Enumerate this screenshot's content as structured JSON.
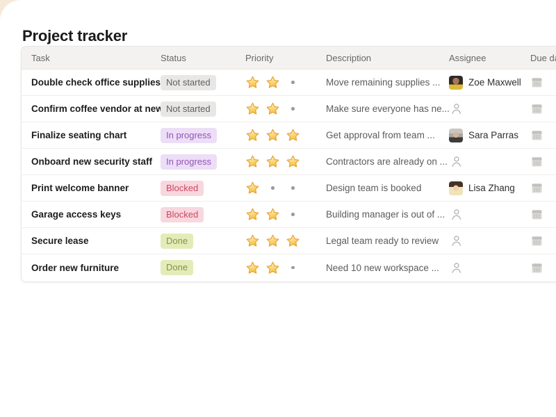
{
  "page": {
    "title": "Project tracker"
  },
  "table": {
    "columns": {
      "task": "Task",
      "status": "Status",
      "priority": "Priority",
      "description": "Description",
      "assignee": "Assignee",
      "due_date": "Due date"
    },
    "priority_max": 3,
    "rows": [
      {
        "task": "Double check office supplies",
        "status": {
          "label": "Not started",
          "key": "not-started"
        },
        "priority": 2,
        "description": "Move remaining supplies ...",
        "assignee": {
          "name": "Zoe Maxwell",
          "avatar": "zoe"
        }
      },
      {
        "task": "Confirm coffee vendor at new...",
        "status": {
          "label": "Not started",
          "key": "not-started"
        },
        "priority": 2,
        "description": "Make sure everyone has ne...",
        "assignee": null
      },
      {
        "task": "Finalize seating chart",
        "status": {
          "label": "In progress",
          "key": "in-progress"
        },
        "priority": 3,
        "description": "Get approval from team ...",
        "assignee": {
          "name": "Sara Parras",
          "avatar": "sara"
        }
      },
      {
        "task": "Onboard new security staff",
        "status": {
          "label": "In progress",
          "key": "in-progress"
        },
        "priority": 3,
        "description": "Contractors are already on ...",
        "assignee": null
      },
      {
        "task": "Print welcome banner",
        "status": {
          "label": "Blocked",
          "key": "blocked"
        },
        "priority": 1,
        "description": "Design team is booked",
        "assignee": {
          "name": "Lisa Zhang",
          "avatar": "lisa"
        }
      },
      {
        "task": "Garage access keys",
        "status": {
          "label": "Blocked",
          "key": "blocked"
        },
        "priority": 2,
        "description": "Building manager is out of ...",
        "assignee": null
      },
      {
        "task": "Secure lease",
        "status": {
          "label": "Done",
          "key": "done"
        },
        "priority": 3,
        "description": "Legal team ready to review",
        "assignee": null
      },
      {
        "task": "Order new furniture",
        "status": {
          "label": "Done",
          "key": "done"
        },
        "priority": 2,
        "description": "Need 10 new workspace ...",
        "assignee": null
      }
    ],
    "status_colors": {
      "not-started": {
        "bg": "#e8e7e6",
        "text": "#60605f"
      },
      "in-progress": {
        "bg": "#ecdef6",
        "text": "#9353b8"
      },
      "blocked": {
        "bg": "#f8d7de",
        "text": "#cb4763"
      },
      "done": {
        "bg": "#e3ecb8",
        "text": "#829449"
      }
    },
    "priority_colors": {
      "star_fill_top": "#fff3c9",
      "star_fill_bottom": "#f6c53f",
      "star_stroke": "#e7a33c",
      "empty_dot": "#9b9b9b"
    },
    "icon_names": {
      "assigned": "avatar",
      "unassigned": "person-outline-icon",
      "due": "calendar-icon"
    }
  }
}
